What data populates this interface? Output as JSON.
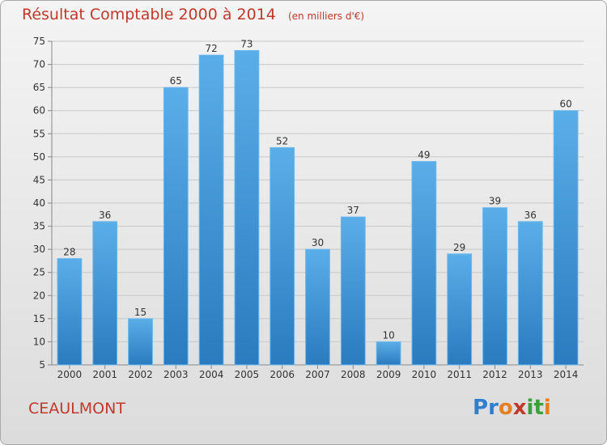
{
  "chart_data": {
    "type": "bar",
    "title": "Résultat Comptable 2000 à 2014",
    "subtitle": "(en milliers d'€)",
    "categories": [
      "2000",
      "2001",
      "2002",
      "2003",
      "2004",
      "2005",
      "2006",
      "2007",
      "2008",
      "2009",
      "2010",
      "2011",
      "2012",
      "2013",
      "2014"
    ],
    "values": [
      28,
      36,
      15,
      65,
      72,
      73,
      52,
      30,
      37,
      10,
      49,
      29,
      39,
      36,
      60
    ],
    "ylim": [
      5,
      75
    ],
    "yticks": [
      5,
      10,
      15,
      20,
      25,
      30,
      35,
      40,
      45,
      50,
      55,
      60,
      65,
      70,
      75
    ],
    "grid": true,
    "bar_color": "#4a9fe0",
    "text_color": "#c0392b"
  },
  "footer": {
    "town": "CEAULMONT",
    "logo_letters": [
      "P",
      "r",
      "o",
      "x",
      "i",
      "t",
      "i"
    ],
    "logo_colors": [
      "#2f7fd1",
      "#2f7fd1",
      "#e67e22",
      "#c0392b",
      "#3aa13a",
      "#3aa13a",
      "#e67e22"
    ]
  }
}
